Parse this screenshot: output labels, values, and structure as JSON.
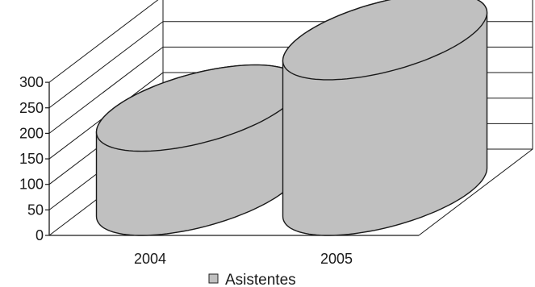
{
  "chart_data": {
    "type": "bar",
    "style": "3d-cylinder",
    "categories": [
      "2004",
      "2005"
    ],
    "series": [
      {
        "name": "Asistentes",
        "values": [
          165,
          305
        ],
        "color": "#c0c0c0"
      }
    ],
    "ylim": [
      0,
      300
    ],
    "yticks": [
      0,
      50,
      100,
      150,
      200,
      250,
      300
    ],
    "grid": true,
    "legend": "bottom",
    "title": "",
    "xlabel": "",
    "ylabel": ""
  }
}
